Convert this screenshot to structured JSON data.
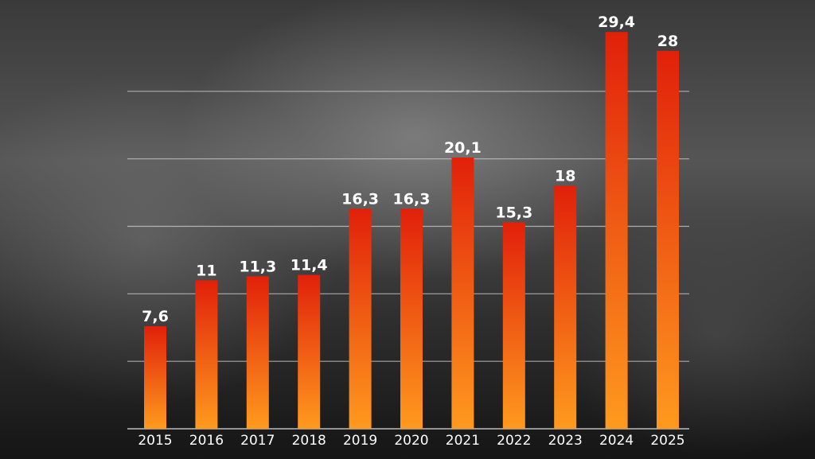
{
  "chart_data": {
    "type": "bar",
    "categories": [
      "2015",
      "2016",
      "2017",
      "2018",
      "2019",
      "2020",
      "2021",
      "2022",
      "2023",
      "2024",
      "2025"
    ],
    "values": [
      7.6,
      11,
      11.3,
      11.4,
      16.3,
      16.3,
      20.1,
      15.3,
      18,
      29.4,
      28
    ],
    "value_labels": [
      "7,6",
      "11",
      "11,3",
      "11,4",
      "16,3",
      "16,3",
      "20,1",
      "15,3",
      "18",
      "29,4",
      "28"
    ],
    "ylim": [
      0,
      30
    ],
    "grid": true,
    "bar_gradient": {
      "top": "#e1200a",
      "bottom": "#ff9a1e"
    },
    "grid_color": "#cfcfcf"
  }
}
